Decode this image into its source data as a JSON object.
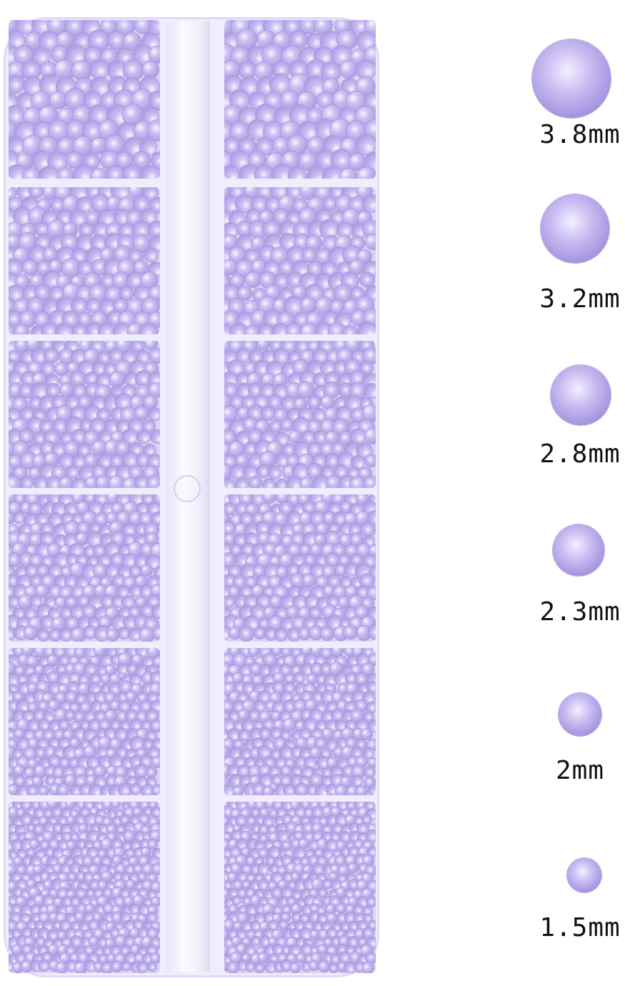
{
  "product": {
    "color_name": "lavender",
    "gem_color": "#b8a8e8",
    "case_color": "#eeeefc",
    "sizes": [
      {
        "label": "3.8mm"
      },
      {
        "label": "3.2mm"
      },
      {
        "label": "2.8mm"
      },
      {
        "label": "2.3mm"
      },
      {
        "label": "2mm"
      },
      {
        "label": "1.5mm"
      }
    ]
  }
}
